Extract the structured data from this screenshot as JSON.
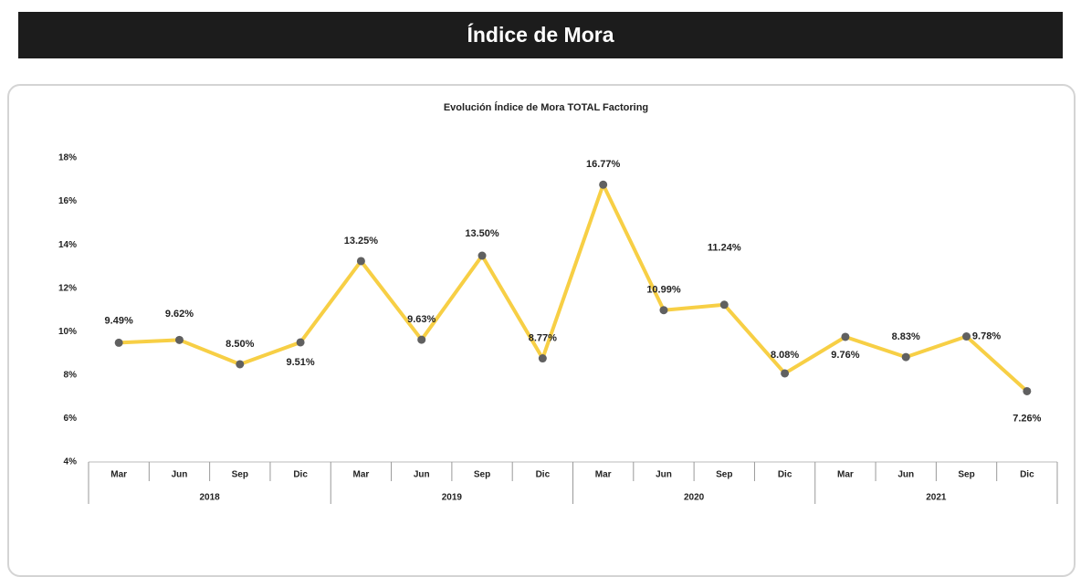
{
  "header": {
    "title": "Índice de Mora"
  },
  "chart_data": {
    "type": "line",
    "title": "Evolución Índice de Mora TOTAL Factoring",
    "categories": [
      "Mar",
      "Jun",
      "Sep",
      "Dic",
      "Mar",
      "Jun",
      "Sep",
      "Dic",
      "Mar",
      "Jun",
      "Sep",
      "Dic",
      "Mar",
      "Jun",
      "Sep",
      "Dic"
    ],
    "year_groups": [
      "2018",
      "2019",
      "2020",
      "2021"
    ],
    "values": [
      9.49,
      9.62,
      8.5,
      9.51,
      13.25,
      9.63,
      13.5,
      8.77,
      16.77,
      10.99,
      11.24,
      8.08,
      9.76,
      8.83,
      9.78,
      7.26
    ],
    "value_labels": [
      "9.49%",
      "9.62%",
      "8.50%",
      "9.51%",
      "13.25%",
      "9.63%",
      "13.50%",
      "8.77%",
      "16.77%",
      "10.99%",
      "11.24%",
      "8.08%",
      "9.76%",
      "8.83%",
      "9.78%",
      "7.26%"
    ],
    "color": "#f7cf45",
    "marker_color": "#606060",
    "ylim": [
      4,
      18
    ],
    "yticks": [
      {
        "value": 4,
        "label": "4%"
      },
      {
        "value": 6,
        "label": "6%"
      },
      {
        "value": 8,
        "label": "8%"
      },
      {
        "value": 10,
        "label": "10%"
      },
      {
        "value": 12,
        "label": "12%"
      },
      {
        "value": 14,
        "label": "14%"
      },
      {
        "value": 16,
        "label": "16%"
      },
      {
        "value": 18,
        "label": "18%"
      }
    ]
  }
}
